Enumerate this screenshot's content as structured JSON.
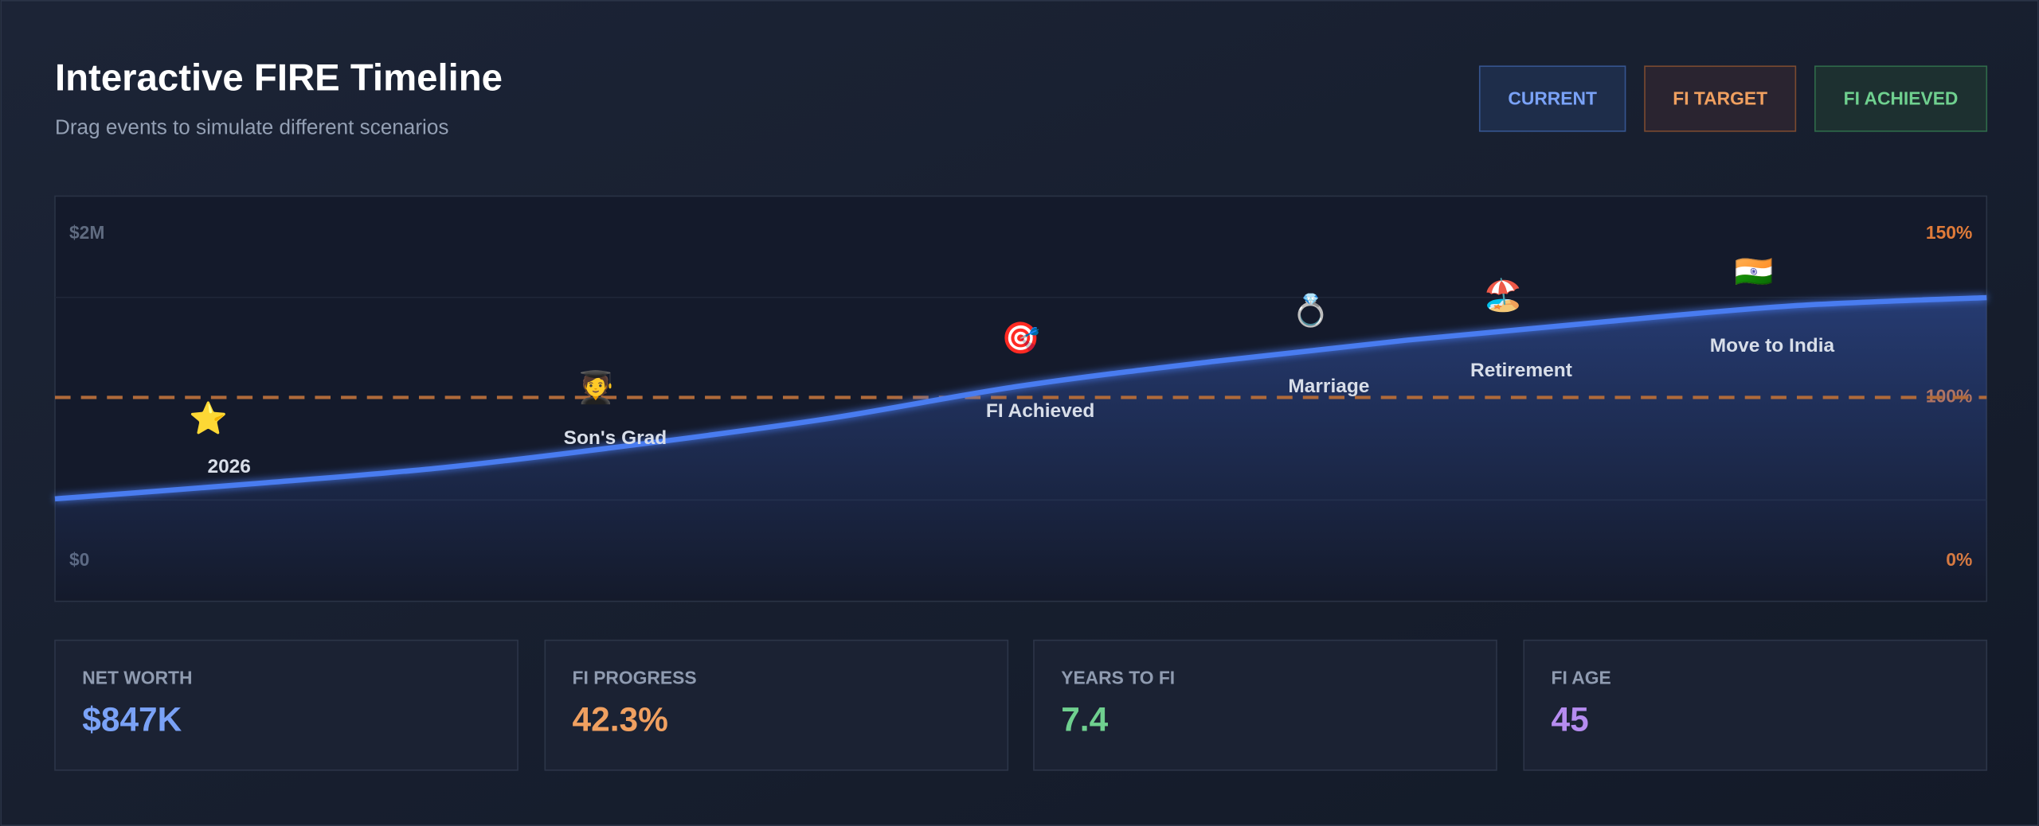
{
  "header": {
    "title": "Interactive FIRE Timeline",
    "subtitle": "Drag events to simulate different scenarios"
  },
  "buttons": [
    "CURRENT",
    "FI TARGET",
    "FI ACHIEVED"
  ],
  "chart_data": {
    "type": "line",
    "categories": [
      null,
      null,
      null,
      null,
      null,
      null,
      null,
      null,
      null,
      null,
      null
    ],
    "values": [
      380000,
      470000,
      570000,
      710000,
      870000,
      1070000,
      1220000,
      1350000,
      1460000,
      1560000,
      1610000
    ],
    "color": "#4a7cf0",
    "ylim": [
      0,
      2000000
    ],
    "yticks": [
      {
        "value": 0,
        "label": "$0"
      },
      {
        "value": 2000000,
        "label": "$2M"
      }
    ],
    "target_line": 1000000,
    "target_color": "#b06a3a",
    "right_labels": [
      "150%",
      "100%",
      "0%"
    ],
    "events": [
      {
        "icon": "⭐",
        "label": "2026"
      },
      {
        "icon": "🧑‍🎓",
        "label": "Son's Grad"
      },
      {
        "icon": "🎯",
        "label": "FI Achieved"
      },
      {
        "icon": "💍",
        "label": "Marriage"
      },
      {
        "icon": "🏖️",
        "label": "Retirement"
      },
      {
        "icon": "🇮🇳",
        "label": "Move to India"
      }
    ]
  },
  "stats": [
    {
      "label": "NET WORTH",
      "value": "$847K"
    },
    {
      "label": "FI PROGRESS",
      "value": "42.3%"
    },
    {
      "label": "YEARS TO FI",
      "value": "7.4"
    },
    {
      "label": "FI AGE",
      "value": "45"
    }
  ]
}
